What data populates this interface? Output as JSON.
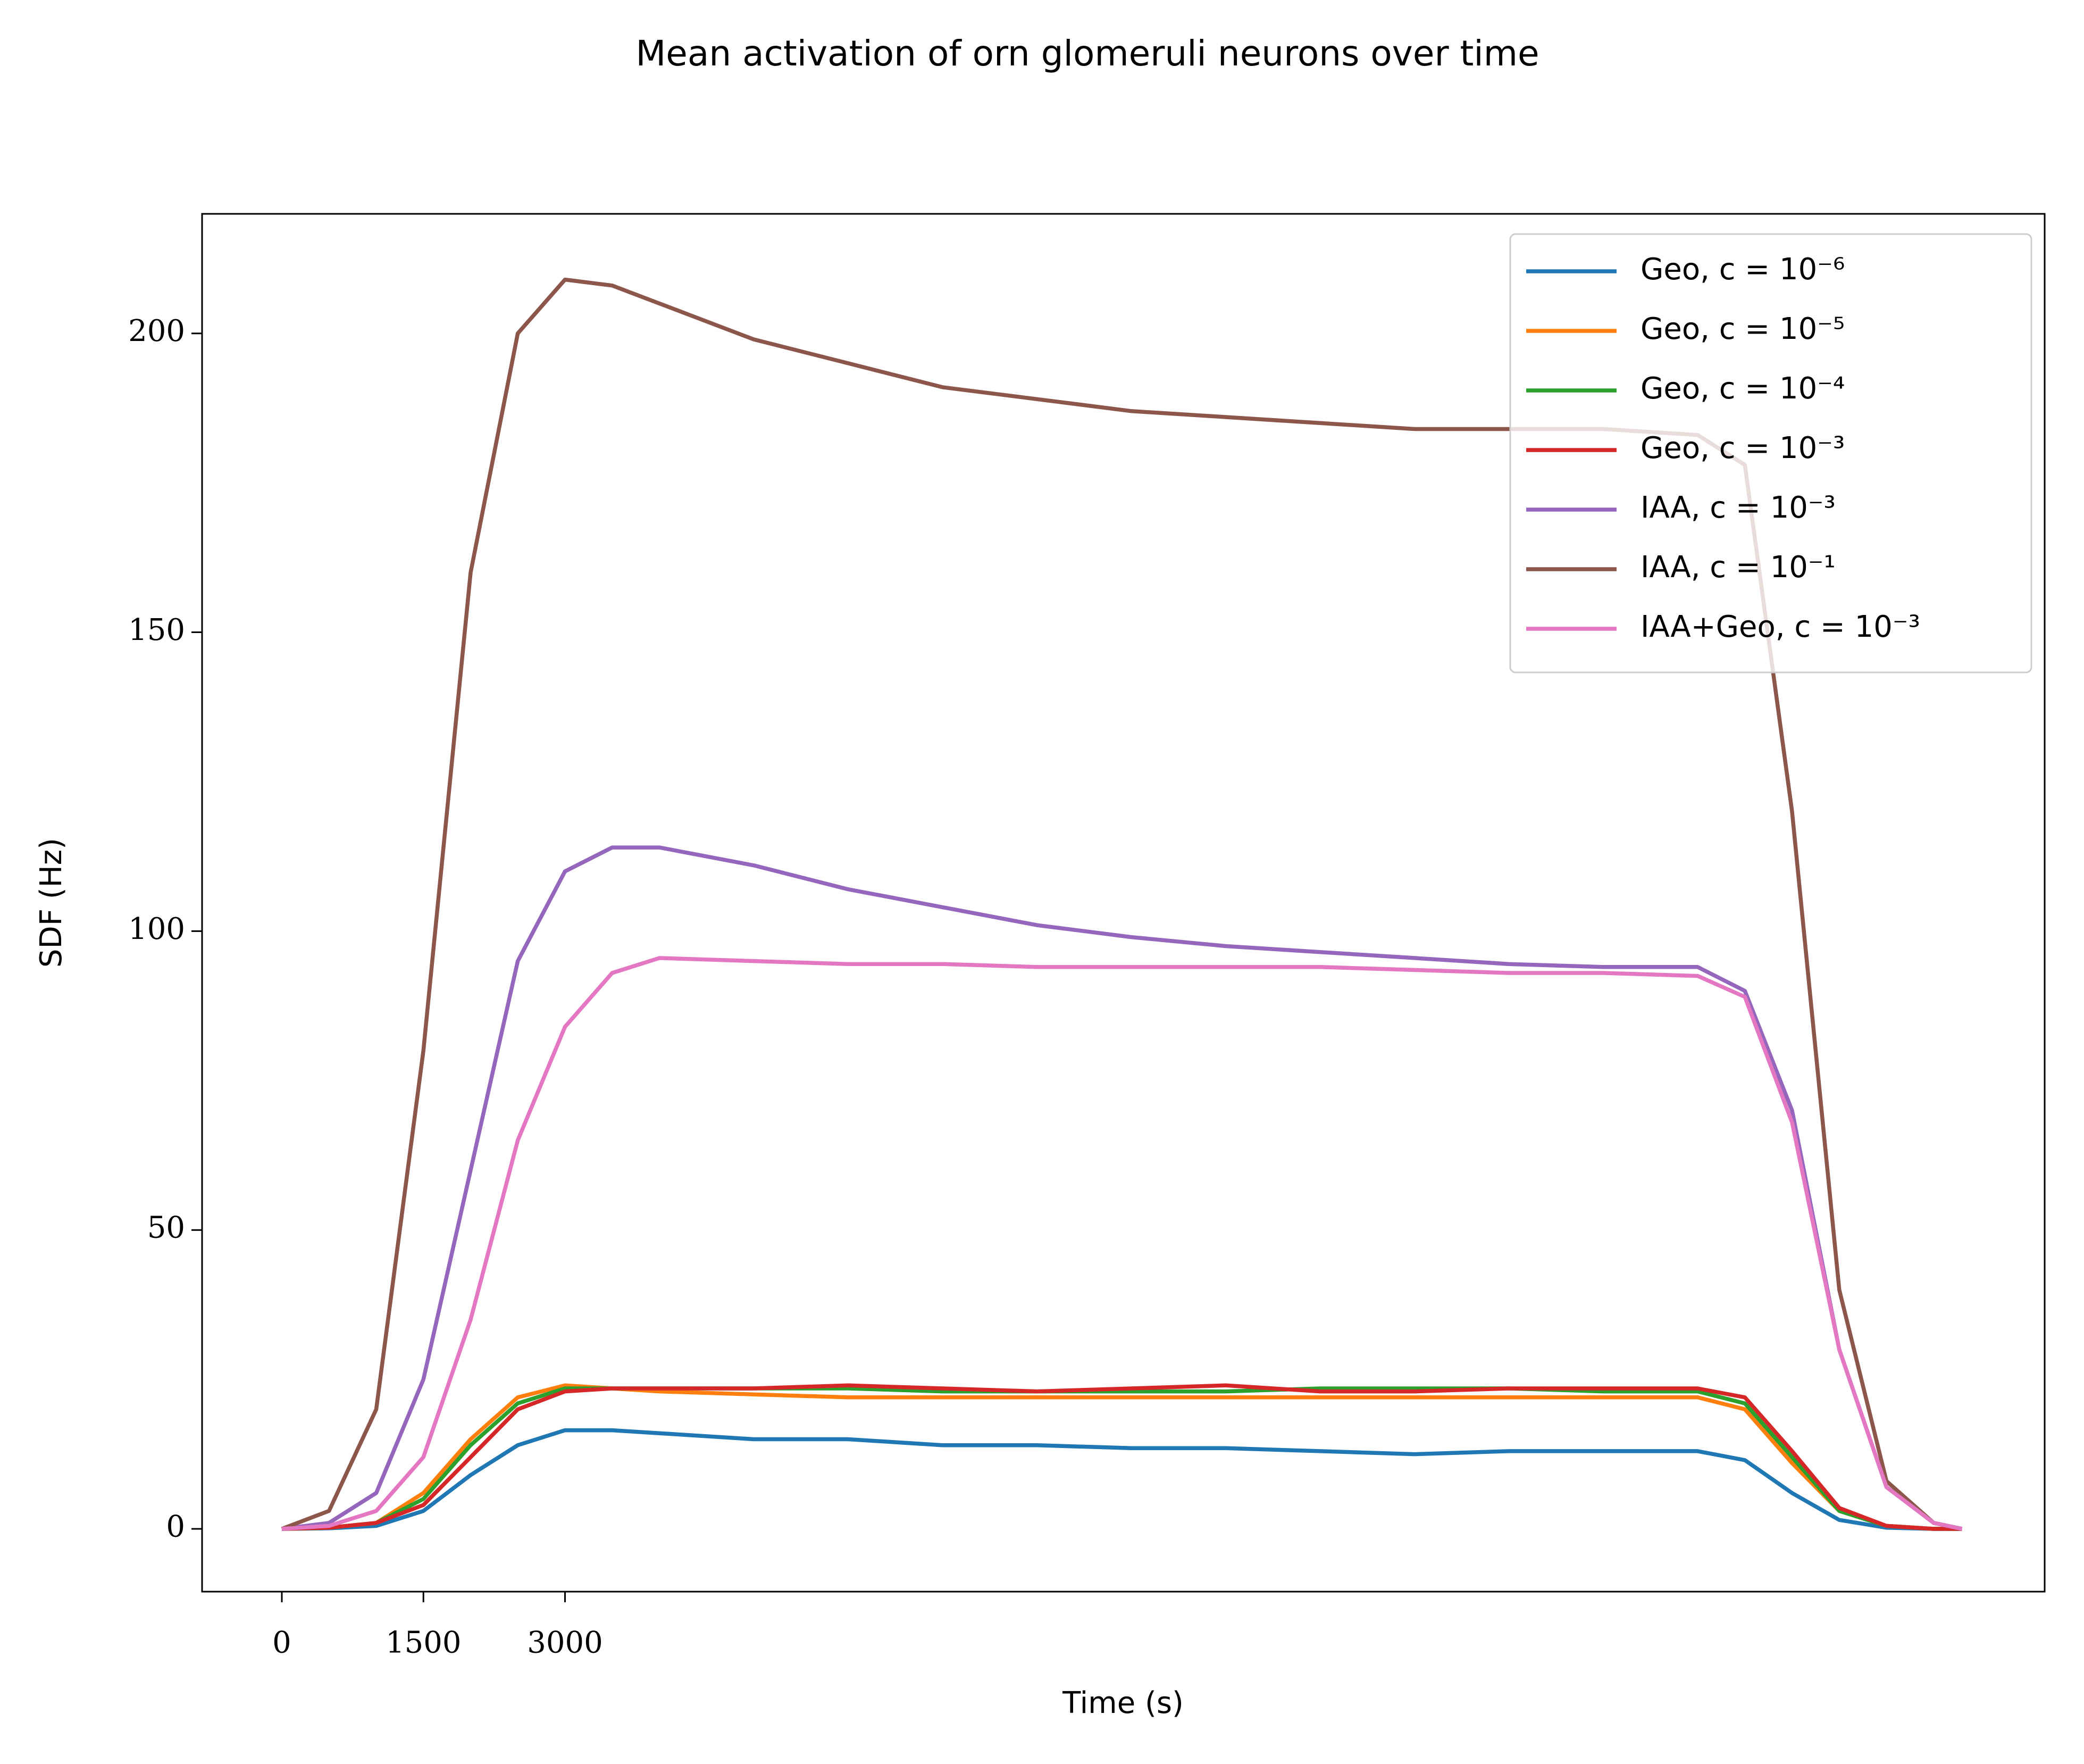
{
  "chart_data": {
    "type": "line",
    "title": "Mean activation of orn glomeruli neurons over time",
    "x_label": "Time (s)",
    "y_label": "SDF (Hz)",
    "x": [
      0,
      500,
      1000,
      1500,
      2000,
      2500,
      3000,
      3500,
      4000,
      5000,
      6000,
      7000,
      8000,
      9000,
      10000,
      11000,
      12000,
      13000,
      14000,
      15000,
      15500,
      16000,
      16500,
      17000,
      17500,
      17800
    ],
    "xlim": [
      -845,
      18676
    ],
    "xticks": [
      0,
      1500,
      3000
    ],
    "ylim": [
      -10.5,
      220
    ],
    "yticks": [
      0,
      50,
      100,
      150,
      200
    ],
    "grid": false,
    "legend": "upper right",
    "series": [
      {
        "name": "Geo, c = 10⁻⁶",
        "color": "#1f77b4",
        "values": [
          0,
          0.1,
          0.5,
          3,
          9,
          14,
          16.5,
          16.5,
          16,
          15,
          15,
          14,
          14,
          13.5,
          13.5,
          13,
          12.5,
          13,
          13,
          13,
          11.5,
          6,
          1.5,
          0.2,
          0,
          0
        ]
      },
      {
        "name": "Geo, c = 10⁻⁵",
        "color": "#ff7f0e",
        "values": [
          0,
          0.2,
          1,
          6,
          15,
          22,
          24,
          23.5,
          23,
          22.5,
          22,
          22,
          22,
          22,
          22,
          22,
          22,
          22,
          22,
          22,
          20,
          11,
          3,
          0.5,
          0,
          0
        ]
      },
      {
        "name": "Geo, c = 10⁻⁴",
        "color": "#2ca02c",
        "values": [
          0,
          0.2,
          1,
          5,
          14,
          21,
          23.5,
          23.5,
          23.5,
          23.5,
          23.5,
          23,
          23,
          23,
          23,
          23.5,
          23.5,
          23.5,
          23,
          23,
          21,
          12,
          3,
          0.5,
          0,
          0
        ]
      },
      {
        "name": "Geo, c = 10⁻³",
        "color": "#d62728",
        "values": [
          0,
          0.2,
          1,
          4,
          12,
          20,
          23,
          23.5,
          23.5,
          23.5,
          24,
          23.5,
          23,
          23.5,
          24,
          23,
          23,
          23.5,
          23.5,
          23.5,
          22,
          13,
          3.5,
          0.5,
          0,
          0
        ]
      },
      {
        "name": "IAA, c = 10⁻³",
        "color": "#9467bd",
        "values": [
          0,
          1,
          6,
          25,
          60,
          95,
          110,
          114,
          114,
          111,
          107,
          104,
          101,
          99,
          97.5,
          96.5,
          95.5,
          94.5,
          94,
          94,
          90,
          70,
          30,
          7,
          1,
          0
        ]
      },
      {
        "name": "IAA, c = 10⁻¹",
        "color": "#8c564b",
        "values": [
          0,
          3,
          20,
          80,
          160,
          200,
          209,
          208,
          205,
          199,
          195,
          191,
          189,
          187,
          186,
          185,
          184,
          184,
          184,
          183,
          178,
          120,
          40,
          8,
          1,
          0
        ]
      },
      {
        "name": "IAA+Geo, c = 10⁻³",
        "color": "#e377c2",
        "values": [
          0,
          0.5,
          3,
          12,
          35,
          65,
          84,
          93,
          95.5,
          95,
          94.5,
          94.5,
          94,
          94,
          94,
          94,
          93.5,
          93,
          93,
          92.5,
          89,
          68,
          30,
          7,
          1,
          0
        ]
      }
    ]
  }
}
